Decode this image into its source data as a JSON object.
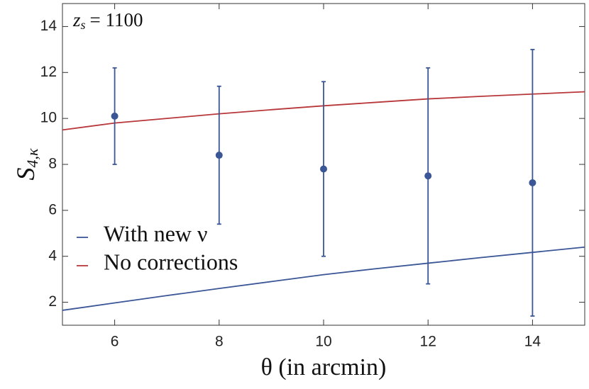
{
  "chart_data": {
    "type": "line",
    "annotation": {
      "text": "z",
      "sub": "s",
      "rest": "= 1100"
    },
    "xlabel": "θ (in arcmin)",
    "ylabel": {
      "text": "S",
      "sub": "4,κ"
    },
    "x": [
      5,
      6,
      7,
      8,
      9,
      10,
      11,
      12,
      13,
      14,
      15
    ],
    "series": [
      {
        "name": "With new ν",
        "color": "#3b5696",
        "values": [
          1.65,
          1.97,
          2.29,
          2.6,
          2.9,
          3.2,
          3.46,
          3.7,
          3.94,
          4.17,
          4.4
        ]
      },
      {
        "name": "No corrections",
        "color": "#b8373a",
        "values": [
          9.5,
          9.8,
          10.0,
          10.2,
          10.38,
          10.55,
          10.7,
          10.85,
          10.96,
          11.06,
          11.16
        ]
      }
    ],
    "points": {
      "color": "#3b5696",
      "x": [
        6,
        8,
        10,
        12,
        14
      ],
      "values": [
        10.1,
        8.4,
        7.8,
        7.5,
        7.2
      ],
      "errors": [
        2.1,
        3.0,
        3.8,
        4.7,
        5.8
      ]
    },
    "xlim": [
      5,
      15
    ],
    "ylim": [
      1,
      15
    ],
    "xticks": [
      6,
      8,
      10,
      12,
      14
    ],
    "yticks": [
      2,
      4,
      6,
      8,
      10,
      12,
      14
    ],
    "legend": "lower left"
  }
}
